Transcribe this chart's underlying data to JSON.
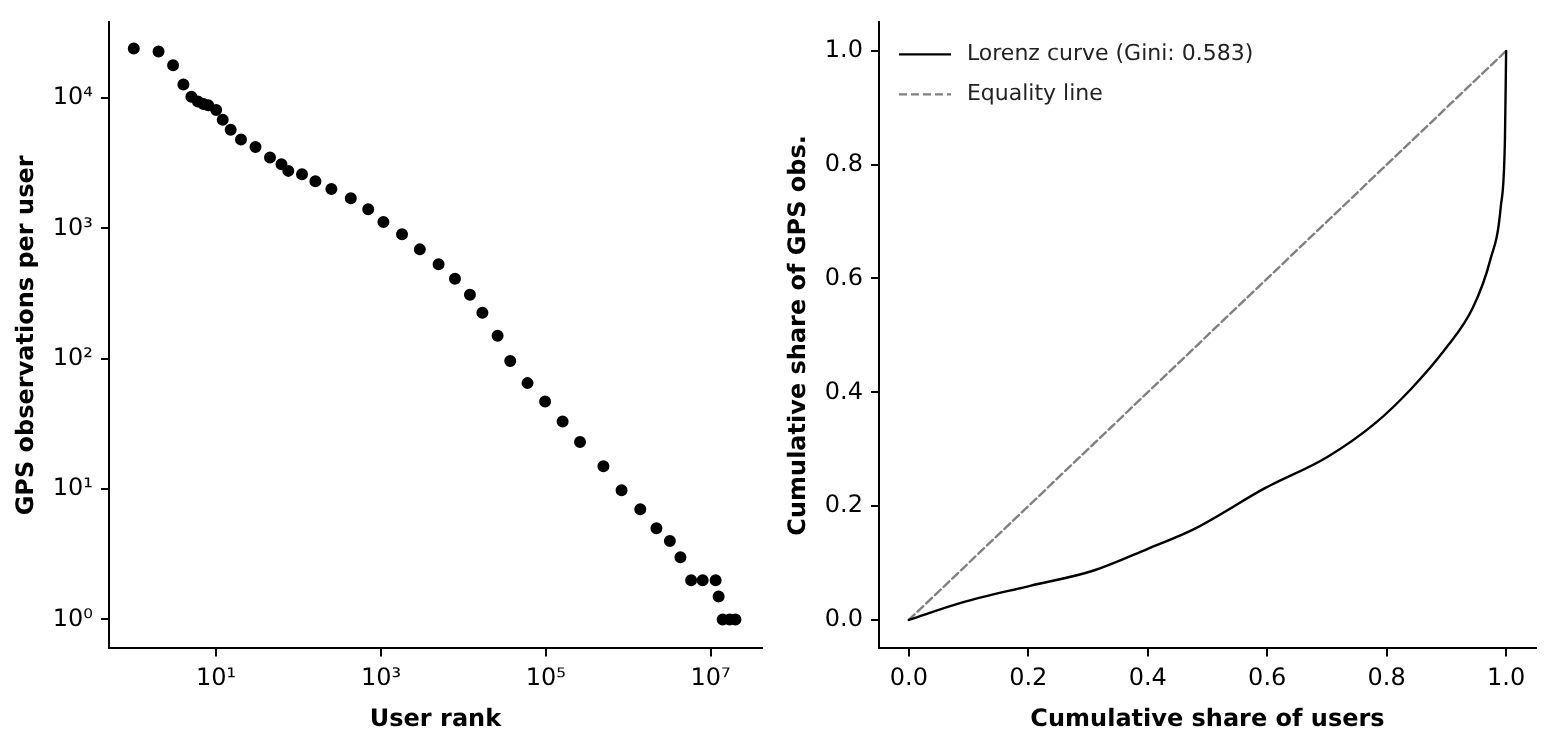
{
  "chart_data": [
    {
      "type": "scatter",
      "xlabel": "User rank",
      "ylabel": "GPS observations per user",
      "log": "xy",
      "grid": false,
      "marker": "circle",
      "xlim": [
        0.5,
        42000000
      ],
      "ylim": [
        0.63,
        38000
      ],
      "xticks": [
        {
          "value": 10,
          "label": "10¹"
        },
        {
          "value": 1000,
          "label": "10³"
        },
        {
          "value": 100000,
          "label": "10⁵"
        },
        {
          "value": 10000000,
          "label": "10⁷"
        }
      ],
      "yticks": [
        {
          "value": 1,
          "label": "10⁰"
        },
        {
          "value": 10,
          "label": "10¹"
        },
        {
          "value": 100,
          "label": "10²"
        },
        {
          "value": 1000,
          "label": "10³"
        },
        {
          "value": 10000,
          "label": "10⁴"
        }
      ],
      "series": [
        {
          "color": "#000000",
          "x": [
            1,
            2,
            3,
            4,
            5,
            6,
            7,
            8,
            10,
            12,
            15,
            20,
            30,
            45,
            62,
            75,
            110,
            160,
            250,
            430,
            700,
            1070,
            1800,
            2960,
            5000,
            7900,
            12000,
            17000,
            26000,
            37000,
            60000,
            98000,
            160000,
            260000,
            500000,
            830000,
            1400000,
            2200000,
            3200000,
            4300000,
            5800000,
            8000000,
            11500000,
            12500000,
            14000000,
            17000000,
            20000000
          ],
          "values": [
            24000,
            22700,
            17800,
            12700,
            10200,
            9400,
            9000,
            8800,
            8100,
            6800,
            5700,
            4800,
            4200,
            3500,
            3100,
            2760,
            2600,
            2300,
            2000,
            1700,
            1400,
            1120,
            900,
            690,
            530,
            410,
            310,
            225,
            150,
            96,
            65,
            47,
            33,
            23,
            15,
            9.8,
            7,
            5,
            4,
            3,
            2,
            2,
            2,
            1.5,
            1,
            1,
            1
          ]
        }
      ]
    },
    {
      "type": "line",
      "xlabel": "Cumulative share of users",
      "ylabel": "Cumulative share of GPS obs.",
      "grid": false,
      "legend": "top left",
      "marker": "none",
      "xlim": [
        -0.05,
        1.05
      ],
      "ylim": [
        -0.05,
        1.05
      ],
      "xticks": [
        {
          "value": 0,
          "label": "0.0"
        },
        {
          "value": 0.2,
          "label": "0.2"
        },
        {
          "value": 0.4,
          "label": "0.4"
        },
        {
          "value": 0.6,
          "label": "0.6"
        },
        {
          "value": 0.8,
          "label": "0.8"
        },
        {
          "value": 1,
          "label": "1.0"
        }
      ],
      "yticks": [
        {
          "value": 0,
          "label": "0.0"
        },
        {
          "value": 0.2,
          "label": "0.2"
        },
        {
          "value": 0.4,
          "label": "0.4"
        },
        {
          "value": 0.6,
          "label": "0.6"
        },
        {
          "value": 0.8,
          "label": "0.8"
        },
        {
          "value": 1,
          "label": "1.0"
        }
      ],
      "series": [
        {
          "name": "Lorenz curve (Gini: 0.583)",
          "color": "#000000",
          "line_style": "solid",
          "x": [
            0,
            0.087,
            0.203,
            0.307,
            0.4,
            0.48,
            0.597,
            0.7,
            0.78,
            0.84,
            0.898,
            0.944,
            0.973,
            0.991,
            0.998,
            1
          ],
          "values": [
            0,
            0.03,
            0.06,
            0.086,
            0.125,
            0.161,
            0.232,
            0.286,
            0.345,
            0.405,
            0.476,
            0.548,
            0.631,
            0.726,
            0.845,
            1
          ]
        },
        {
          "name": "Equality line",
          "color": "#808080",
          "line_style": "dashed",
          "x": [
            0,
            1
          ],
          "values": [
            0,
            1
          ]
        }
      ]
    }
  ]
}
